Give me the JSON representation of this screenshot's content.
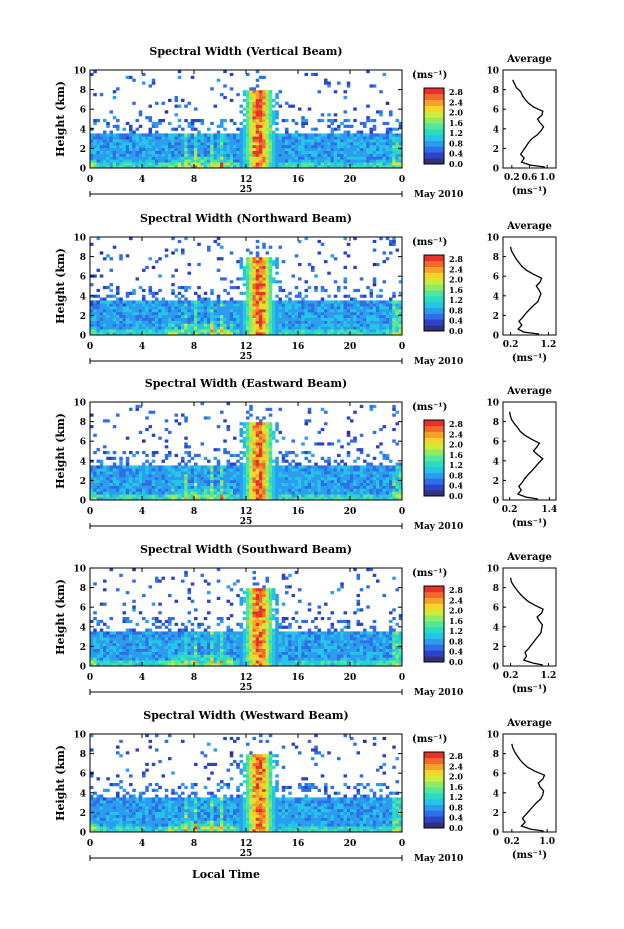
{
  "panels": [
    {
      "title": "Spectral Width (Vertical Beam)",
      "avg_xticks": [
        "0.2",
        "0.6",
        "1.0"
      ],
      "avg_xlim": [
        0.0,
        1.2
      ],
      "avg_profile": [
        [
          0.95,
          0.1
        ],
        [
          0.62,
          0.3
        ],
        [
          0.42,
          0.6
        ],
        [
          0.48,
          1.0
        ],
        [
          0.4,
          1.4
        ],
        [
          0.46,
          1.8
        ],
        [
          0.52,
          2.2
        ],
        [
          0.58,
          2.6
        ],
        [
          0.66,
          3.0
        ],
        [
          0.78,
          3.4
        ],
        [
          0.86,
          3.8
        ],
        [
          0.92,
          4.2
        ],
        [
          0.84,
          4.6
        ],
        [
          0.78,
          5.0
        ],
        [
          0.88,
          5.4
        ],
        [
          0.9,
          5.8
        ],
        [
          0.7,
          6.2
        ],
        [
          0.58,
          6.6
        ],
        [
          0.5,
          7.0
        ],
        [
          0.44,
          7.4
        ],
        [
          0.4,
          7.8
        ],
        [
          0.3,
          8.2
        ],
        [
          0.26,
          8.6
        ],
        [
          0.22,
          9.0
        ]
      ]
    },
    {
      "title": "Spectral Width (Northward Beam)",
      "avg_xticks": [
        "0.2",
        "1.2"
      ],
      "avg_xlim": [
        0.0,
        1.4
      ],
      "avg_profile": [
        [
          0.95,
          0.1
        ],
        [
          0.55,
          0.3
        ],
        [
          0.4,
          0.6
        ],
        [
          0.5,
          1.0
        ],
        [
          0.42,
          1.4
        ],
        [
          0.52,
          1.8
        ],
        [
          0.6,
          2.2
        ],
        [
          0.7,
          2.6
        ],
        [
          0.8,
          3.0
        ],
        [
          0.92,
          3.4
        ],
        [
          0.96,
          3.8
        ],
        [
          1.0,
          4.2
        ],
        [
          0.95,
          4.6
        ],
        [
          0.88,
          5.0
        ],
        [
          0.98,
          5.4
        ],
        [
          1.02,
          5.8
        ],
        [
          0.8,
          6.2
        ],
        [
          0.62,
          6.6
        ],
        [
          0.5,
          7.0
        ],
        [
          0.42,
          7.4
        ],
        [
          0.34,
          7.8
        ],
        [
          0.28,
          8.2
        ],
        [
          0.22,
          8.6
        ],
        [
          0.2,
          9.0
        ]
      ]
    },
    {
      "title": "Spectral Width (Eastward Beam)",
      "avg_xticks": [
        "0.2",
        "1.4"
      ],
      "avg_xlim": [
        0.0,
        1.6
      ],
      "avg_profile": [
        [
          1.05,
          0.1
        ],
        [
          0.7,
          0.3
        ],
        [
          0.45,
          0.6
        ],
        [
          0.55,
          1.0
        ],
        [
          0.48,
          1.4
        ],
        [
          0.58,
          1.8
        ],
        [
          0.66,
          2.2
        ],
        [
          0.76,
          2.6
        ],
        [
          0.88,
          3.0
        ],
        [
          0.98,
          3.4
        ],
        [
          1.08,
          3.8
        ],
        [
          1.2,
          4.2
        ],
        [
          1.05,
          4.6
        ],
        [
          0.92,
          5.0
        ],
        [
          1.02,
          5.4
        ],
        [
          1.1,
          5.8
        ],
        [
          0.86,
          6.2
        ],
        [
          0.66,
          6.6
        ],
        [
          0.52,
          7.0
        ],
        [
          0.44,
          7.4
        ],
        [
          0.34,
          7.8
        ],
        [
          0.26,
          8.2
        ],
        [
          0.22,
          8.6
        ],
        [
          0.2,
          9.0
        ]
      ]
    },
    {
      "title": "Spectral Width (Southward Beam)",
      "avg_xticks": [
        "0.2",
        "1.2"
      ],
      "avg_xlim": [
        0.0,
        1.4
      ],
      "avg_profile": [
        [
          1.05,
          0.1
        ],
        [
          0.8,
          0.3
        ],
        [
          0.55,
          0.6
        ],
        [
          0.62,
          1.0
        ],
        [
          0.58,
          1.4
        ],
        [
          0.68,
          1.8
        ],
        [
          0.76,
          2.2
        ],
        [
          0.84,
          2.6
        ],
        [
          0.92,
          3.0
        ],
        [
          1.0,
          3.4
        ],
        [
          1.02,
          3.8
        ],
        [
          1.04,
          4.2
        ],
        [
          0.96,
          4.6
        ],
        [
          0.9,
          5.0
        ],
        [
          1.02,
          5.4
        ],
        [
          1.06,
          5.8
        ],
        [
          0.84,
          6.2
        ],
        [
          0.66,
          6.6
        ],
        [
          0.54,
          7.0
        ],
        [
          0.44,
          7.4
        ],
        [
          0.36,
          7.8
        ],
        [
          0.28,
          8.2
        ],
        [
          0.22,
          8.6
        ],
        [
          0.2,
          9.0
        ]
      ]
    },
    {
      "title": "Spectral Width (Westward Beam)",
      "avg_xticks": [
        "0.2",
        "1.0"
      ],
      "avg_xlim": [
        0.0,
        1.2
      ],
      "avg_profile": [
        [
          0.92,
          0.1
        ],
        [
          0.62,
          0.3
        ],
        [
          0.42,
          0.6
        ],
        [
          0.5,
          1.0
        ],
        [
          0.44,
          1.4
        ],
        [
          0.52,
          1.8
        ],
        [
          0.6,
          2.2
        ],
        [
          0.68,
          2.6
        ],
        [
          0.76,
          3.0
        ],
        [
          0.86,
          3.4
        ],
        [
          0.9,
          3.8
        ],
        [
          0.92,
          4.2
        ],
        [
          0.84,
          4.6
        ],
        [
          0.8,
          5.0
        ],
        [
          0.9,
          5.4
        ],
        [
          0.94,
          5.8
        ],
        [
          0.72,
          6.2
        ],
        [
          0.56,
          6.6
        ],
        [
          0.46,
          7.0
        ],
        [
          0.38,
          7.4
        ],
        [
          0.32,
          7.8
        ],
        [
          0.26,
          8.2
        ],
        [
          0.22,
          8.6
        ],
        [
          0.2,
          9.0
        ]
      ]
    }
  ],
  "labels": {
    "ylabel": "Height (km)",
    "xticks": [
      "0",
      "4",
      "8",
      "12",
      "16",
      "20",
      "0"
    ],
    "day": "25",
    "month": "May 2010",
    "xlabel": "Local Time",
    "cbar_unit": "(ms⁻¹)",
    "cbar_ticks": [
      "2.8",
      "2.4",
      "2.0",
      "1.6",
      "1.2",
      "0.8",
      "0.4",
      "0.0"
    ],
    "yticks": [
      "0",
      "2",
      "4",
      "6",
      "8",
      "10"
    ],
    "avg_title": "Average",
    "avg_xlabel": "(ms⁻¹)"
  },
  "colors": {
    "colormap": [
      "#32307a",
      "#2b43c8",
      "#2f6ee6",
      "#2c9cee",
      "#25c5e8",
      "#2cdcc2",
      "#54e79a",
      "#8fec62",
      "#cdeb3a",
      "#f6d52b",
      "#f6a12b",
      "#f26a2a",
      "#e6322b"
    ],
    "axis": "#000000"
  },
  "chart_data": {
    "type": "heatmap",
    "title": "Spectral Width",
    "xlabel": "Local Time",
    "ylabel": "Height (km)",
    "xlim_hours": [
      0,
      24
    ],
    "ylim_km": [
      0,
      10
    ],
    "colorbar_range_ms": [
      0.0,
      2.8
    ],
    "date": "25 May 2010",
    "beams": [
      "Vertical",
      "Northward",
      "Eastward",
      "Southward",
      "Westward"
    ],
    "features": [
      {
        "description": "boundary-layer band of high spectral width",
        "hours": [
          0,
          24
        ],
        "height_km": [
          0,
          3.5
        ],
        "value_ms": [
          0.4,
          1.2
        ]
      },
      {
        "description": "convective cells",
        "hours": [
          11.5,
          14.5
        ],
        "height_km": [
          1,
          8
        ],
        "value_ms": [
          2.0,
          2.8
        ]
      },
      {
        "description": "enhanced near-surface widths",
        "hours": [
          6,
          11
        ],
        "height_km": [
          0,
          1
        ],
        "value_ms": [
          1.2,
          2.2
        ]
      }
    ]
  }
}
